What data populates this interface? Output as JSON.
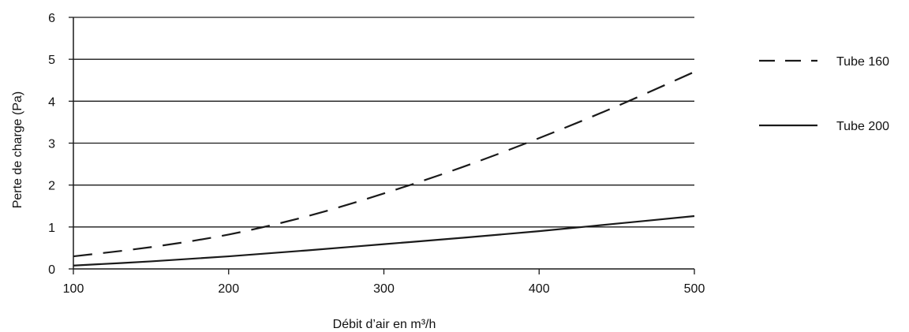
{
  "chart_data": {
    "type": "line",
    "xlabel": "Débit d’air en m³/h",
    "ylabel": "Perte de charge (Pa)",
    "xlim": [
      100,
      500
    ],
    "ylim": [
      0,
      6
    ],
    "x_ticks": [
      100,
      200,
      300,
      400,
      500
    ],
    "y_ticks": [
      0,
      1,
      2,
      3,
      4,
      5,
      6
    ],
    "grid": "horizontal",
    "legend_position": "right",
    "series": [
      {
        "name": "Tube 160",
        "style": "dashed",
        "color": "#1a1a1a",
        "x": [
          100,
          150,
          200,
          250,
          300,
          350,
          400,
          450,
          500
        ],
        "y": [
          0.3,
          0.52,
          0.82,
          1.25,
          1.8,
          2.42,
          3.12,
          3.88,
          4.7
        ]
      },
      {
        "name": "Tube 200",
        "style": "solid",
        "color": "#1a1a1a",
        "x": [
          100,
          150,
          200,
          250,
          300,
          350,
          400,
          450,
          500
        ],
        "y": [
          0.08,
          0.18,
          0.3,
          0.44,
          0.59,
          0.74,
          0.9,
          1.08,
          1.26
        ]
      }
    ]
  }
}
